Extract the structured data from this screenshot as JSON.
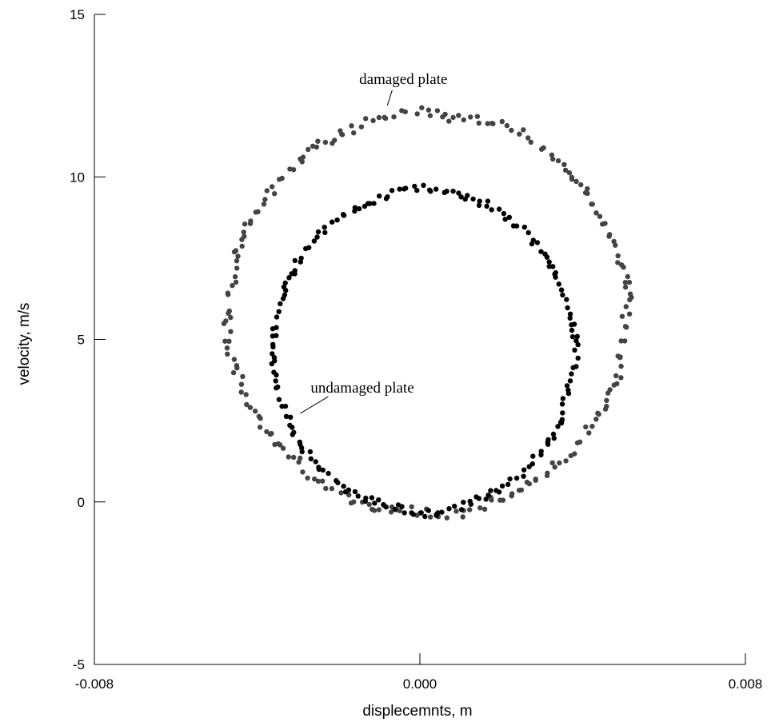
{
  "chart_data": {
    "type": "scatter",
    "xlabel": "displecemnts, m",
    "ylabel": "velocity, m/s",
    "xlim": [
      -0.008,
      0.008
    ],
    "ylim": [
      -5,
      15
    ],
    "x_ticks": [
      "-0.008",
      "0.000",
      "0.008"
    ],
    "y_ticks": [
      "-5",
      "0",
      "5",
      "10",
      "15"
    ],
    "grid": false,
    "series": [
      {
        "name": "damaged plate",
        "color": "#444444",
        "shape": "noisy ring",
        "center": [
          0.0002,
          5.8
        ],
        "radius_x": 0.0049,
        "radius_y": 6.15,
        "noise_x": 0.0001,
        "noise_y": 0.15,
        "n_points": 230
      },
      {
        "name": "undamaged plate",
        "color": "#000000",
        "shape": "noisy ring",
        "center": [
          0.0001,
          4.65
        ],
        "radius_x": 0.0037,
        "radius_y": 4.95,
        "noise_x": 7e-05,
        "noise_y": 0.1,
        "n_points": 200
      }
    ],
    "annotations": [
      {
        "text": "damaged plate",
        "point": [
          -0.0008,
          12.0
        ]
      },
      {
        "text": "undamaged plate",
        "point": [
          -0.003,
          2.6
        ]
      }
    ]
  }
}
